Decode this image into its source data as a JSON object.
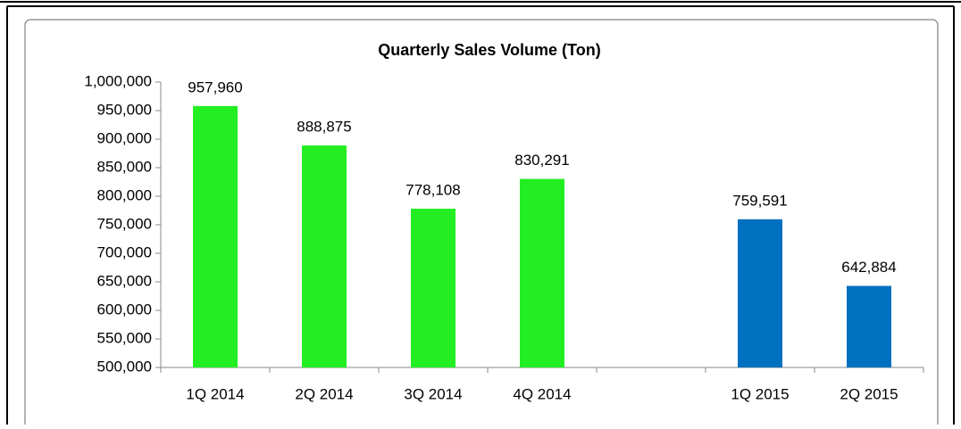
{
  "chart_data": {
    "type": "bar",
    "title": "Quarterly  Sales Volume (Ton)",
    "categories": [
      "1Q 2014",
      "2Q 2014",
      "3Q 2014",
      "4Q 2014",
      null,
      "1Q 2015",
      "2Q 2015"
    ],
    "values": [
      957960,
      888875,
      778108,
      830291,
      null,
      759591,
      642884
    ],
    "value_labels": [
      "957,960",
      "888,875",
      "778,108",
      "830,291",
      null,
      "759,591",
      "642,884"
    ],
    "colors": [
      "#22ee22",
      "#22ee22",
      "#22ee22",
      "#22ee22",
      null,
      "#0070c0",
      "#0070c0"
    ],
    "ylim": [
      500000,
      1000000
    ],
    "yticks": [
      {
        "value": 500000,
        "label": "500,000"
      },
      {
        "value": 550000,
        "label": "550,000"
      },
      {
        "value": 600000,
        "label": "600,000"
      },
      {
        "value": 650000,
        "label": "650,000"
      },
      {
        "value": 700000,
        "label": "700,000"
      },
      {
        "value": 750000,
        "label": "750,000"
      },
      {
        "value": 800000,
        "label": "800,000"
      },
      {
        "value": 850000,
        "label": "850,000"
      },
      {
        "value": 900000,
        "label": "900,000"
      },
      {
        "value": 950000,
        "label": "950,000"
      },
      {
        "value": 1000000,
        "label": "1,000,000"
      }
    ],
    "grid": false
  }
}
